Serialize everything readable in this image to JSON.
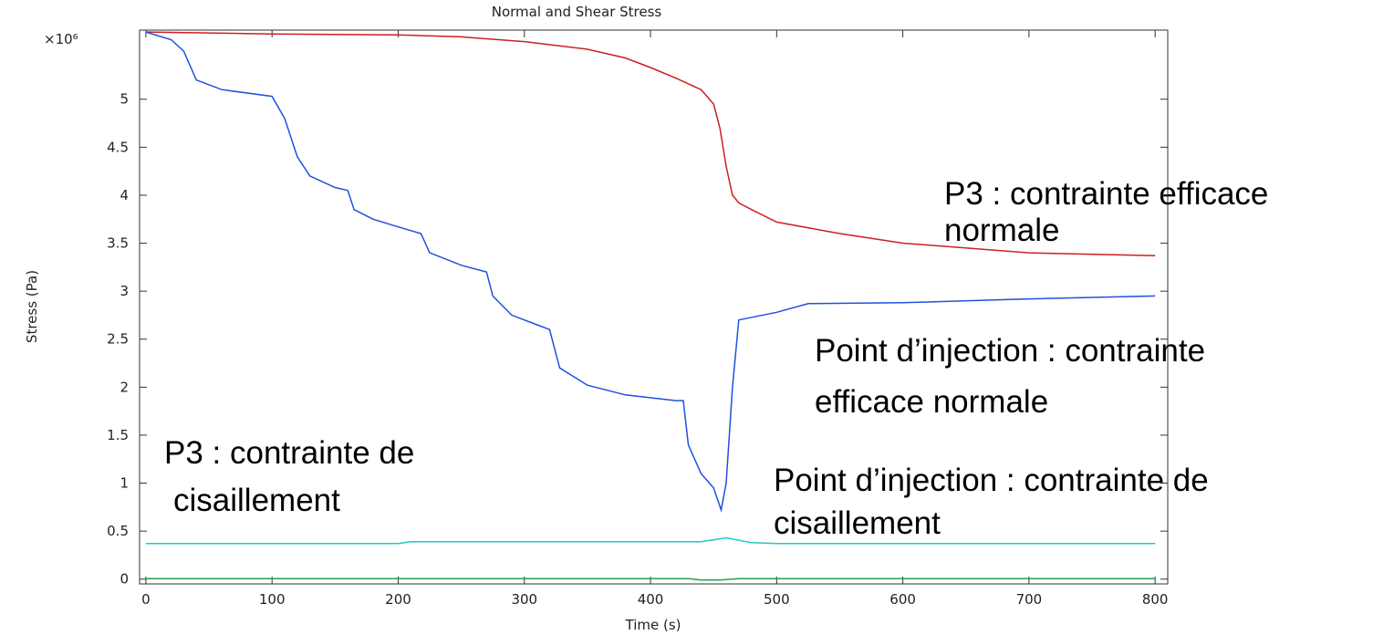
{
  "chart_data": {
    "type": "line",
    "title": "Normal and Shear Stress",
    "xlabel": "Time (s)",
    "ylabel": "Stress (Pa)",
    "y_multiplier": "×10⁶",
    "annotations": [
      "P3 : contrainte efficace",
      "normale",
      "Point d’injection : contrainte",
      "efficace normale",
      "P3 : contrainte de",
      "cisaillement",
      "Point d’injection : contrainte de",
      "cisaillement"
    ],
    "xlim": [
      -5,
      810
    ],
    "ylim": [
      -0.05,
      5.72
    ],
    "xticks": [
      0,
      100,
      200,
      300,
      400,
      500,
      600,
      700,
      800
    ],
    "yticks": [
      0,
      0.5,
      1,
      1.5,
      2,
      2.5,
      3,
      3.5,
      4,
      4.5,
      5
    ],
    "grid": false,
    "series": [
      {
        "color": "#cc2020",
        "x": [
          0,
          100,
          200,
          250,
          300,
          350,
          380,
          400,
          420,
          440,
          450,
          455,
          460,
          465,
          470,
          480,
          500,
          550,
          600,
          700,
          800
        ],
        "values": [
          5.7,
          5.68,
          5.67,
          5.65,
          5.6,
          5.52,
          5.43,
          5.33,
          5.22,
          5.1,
          4.95,
          4.7,
          4.3,
          4.0,
          3.92,
          3.85,
          3.72,
          3.6,
          3.5,
          3.4,
          3.37
        ]
      },
      {
        "color": "#2050e0",
        "x": [
          0,
          20,
          30,
          40,
          60,
          100,
          110,
          120,
          130,
          150,
          160,
          165,
          180,
          200,
          218,
          225,
          250,
          270,
          275,
          290,
          310,
          320,
          328,
          350,
          380,
          420,
          426,
          430,
          440,
          450,
          456,
          460,
          465,
          470,
          500,
          525,
          600,
          700,
          800
        ],
        "values": [
          5.7,
          5.62,
          5.5,
          5.2,
          5.1,
          5.03,
          4.8,
          4.4,
          4.2,
          4.08,
          4.05,
          3.85,
          3.75,
          3.67,
          3.6,
          3.4,
          3.27,
          3.2,
          2.95,
          2.75,
          2.65,
          2.6,
          2.2,
          2.02,
          1.92,
          1.86,
          1.86,
          1.4,
          1.1,
          0.95,
          0.72,
          1.0,
          2.0,
          2.7,
          2.78,
          2.87,
          2.88,
          2.92,
          2.95
        ]
      },
      {
        "color": "#20c8c8",
        "x": [
          0,
          200,
          210,
          440,
          460,
          480,
          500,
          800
        ],
        "values": [
          0.37,
          0.37,
          0.39,
          0.39,
          0.43,
          0.38,
          0.37,
          0.37
        ]
      },
      {
        "color": "#20a050",
        "x": [
          0,
          430,
          440,
          455,
          470,
          800
        ],
        "values": [
          0.005,
          0.005,
          -0.01,
          -0.01,
          0.005,
          0.005
        ]
      }
    ]
  }
}
